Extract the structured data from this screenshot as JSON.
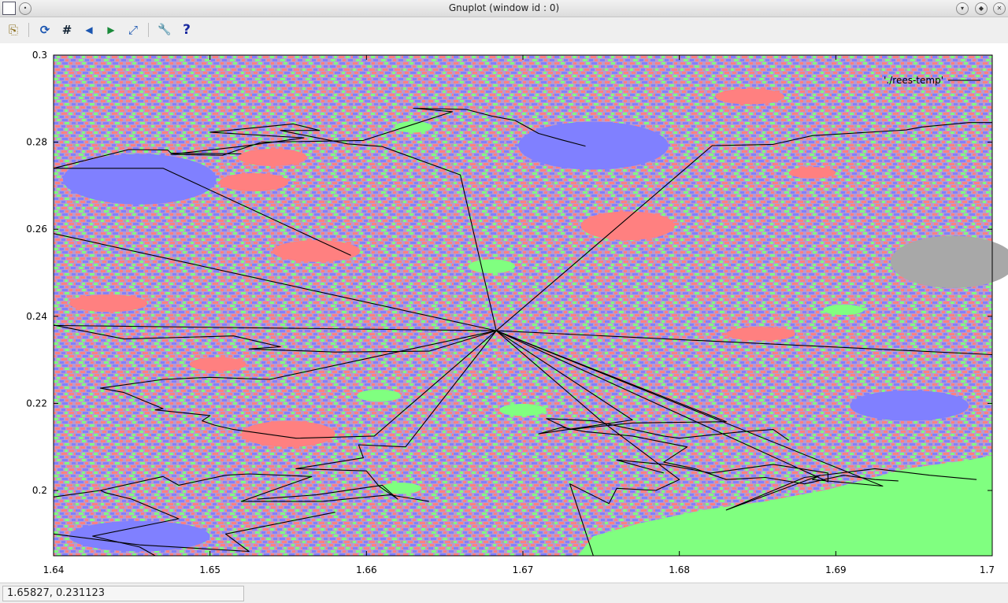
{
  "window": {
    "title": "Gnuplot (window id : 0)"
  },
  "toolbar": {
    "items": [
      {
        "name": "copy-to-clipboard",
        "glyph": "⎘"
      },
      {
        "name": "replot",
        "glyph": "⟳"
      },
      {
        "name": "grid",
        "glyph": "#"
      },
      {
        "name": "previous-zoom",
        "glyph": "◀"
      },
      {
        "name": "next-zoom",
        "glyph": "▶"
      },
      {
        "name": "autoscale",
        "glyph": "⤢"
      },
      {
        "name": "settings",
        "glyph": "🔧"
      },
      {
        "name": "help",
        "glyph": "?"
      }
    ]
  },
  "status": {
    "coords": "1.65827,  0.231123"
  },
  "chart_data": {
    "type": "line",
    "title": "",
    "xlabel": "",
    "ylabel": "",
    "xlim": [
      1.64,
      1.7
    ],
    "ylim": [
      0.185,
      0.3
    ],
    "xticks": [
      "1.64",
      "1.65",
      "1.66",
      "1.67",
      "1.68",
      "1.69",
      "1.7"
    ],
    "yticks": [
      "0.3",
      "0.28",
      "0.26",
      "0.24",
      "0.22",
      "0.2"
    ],
    "legend": {
      "label": "'./rees-temp'",
      "position": "top-right"
    },
    "background": "color-noise field (pink, blue, green, grey)",
    "colors": {
      "pink": "#ff8080",
      "blue": "#8080ff",
      "green": "#80ff80",
      "grey": "#a8a8a8",
      "line": "#000000"
    },
    "blobs": [
      {
        "color": "blue",
        "x": 1.6455,
        "y": 0.2715,
        "rx": 0.0049,
        "ry": 0.0058
      },
      {
        "color": "blue",
        "x": 1.6745,
        "y": 0.2792,
        "rx": 0.0048,
        "ry": 0.0055
      },
      {
        "color": "blue",
        "x": 1.6947,
        "y": 0.2195,
        "rx": 0.0038,
        "ry": 0.0035
      },
      {
        "color": "blue",
        "x": 1.6455,
        "y": 0.1895,
        "rx": 0.0045,
        "ry": 0.0035
      },
      {
        "color": "pink",
        "x": 1.6528,
        "y": 0.2708,
        "rx": 0.0022,
        "ry": 0.0021
      },
      {
        "color": "pink",
        "x": 1.6568,
        "y": 0.255,
        "rx": 0.0028,
        "ry": 0.0025
      },
      {
        "color": "pink",
        "x": 1.6767,
        "y": 0.2608,
        "rx": 0.003,
        "ry": 0.0033
      },
      {
        "color": "pink",
        "x": 1.655,
        "y": 0.213,
        "rx": 0.003,
        "ry": 0.003
      },
      {
        "color": "pink",
        "x": 1.654,
        "y": 0.2765,
        "rx": 0.0022,
        "ry": 0.002
      },
      {
        "color": "pink",
        "x": 1.6435,
        "y": 0.243,
        "rx": 0.0025,
        "ry": 0.002
      },
      {
        "color": "pink",
        "x": 1.6845,
        "y": 0.2905,
        "rx": 0.0022,
        "ry": 0.0018
      },
      {
        "color": "pink",
        "x": 1.6852,
        "y": 0.236,
        "rx": 0.0022,
        "ry": 0.0016
      },
      {
        "color": "pink",
        "x": 1.6505,
        "y": 0.229,
        "rx": 0.0018,
        "ry": 0.0016
      },
      {
        "color": "pink",
        "x": 1.6885,
        "y": 0.273,
        "rx": 0.0015,
        "ry": 0.0013
      },
      {
        "color": "grey",
        "x": 1.6975,
        "y": 0.2525,
        "rx": 0.004,
        "ry": 0.006
      },
      {
        "color": "green",
        "x": 1.668,
        "y": 0.2515,
        "rx": 0.0015,
        "ry": 0.0016
      },
      {
        "color": "green",
        "x": 1.67,
        "y": 0.2185,
        "rx": 0.0015,
        "ry": 0.0014
      },
      {
        "color": "green",
        "x": 1.6608,
        "y": 0.2218,
        "rx": 0.0014,
        "ry": 0.0014
      },
      {
        "color": "green",
        "x": 1.663,
        "y": 0.2835,
        "rx": 0.0012,
        "ry": 0.0013
      },
      {
        "color": "green",
        "x": 1.6905,
        "y": 0.2415,
        "rx": 0.0013,
        "ry": 0.0012
      },
      {
        "color": "green",
        "x": 1.6622,
        "y": 0.2005,
        "rx": 0.0013,
        "ry": 0.0013
      }
    ],
    "green_region": [
      [
        1.6735,
        0.185
      ],
      [
        1.6745,
        0.1895
      ],
      [
        1.6775,
        0.1925
      ],
      [
        1.6815,
        0.1955
      ],
      [
        1.6855,
        0.1975
      ],
      [
        1.6895,
        0.2002
      ],
      [
        1.6945,
        0.205
      ],
      [
        1.6985,
        0.207
      ],
      [
        1.7,
        0.208
      ],
      [
        1.7,
        0.185
      ]
    ],
    "series": [
      {
        "points": [
          [
            1.64,
            0.274
          ],
          [
            1.647,
            0.274
          ],
          [
            1.659,
            0.254
          ]
        ]
      },
      {
        "points": [
          [
            1.64,
            0.259
          ],
          [
            1.6683,
            0.2367
          ]
        ]
      },
      {
        "points": [
          [
            1.64,
            0.2379
          ],
          [
            1.6683,
            0.2367
          ],
          [
            1.7,
            0.2312
          ]
        ]
      },
      {
        "points": [
          [
            1.6683,
            0.2367
          ],
          [
            1.6821,
            0.2792
          ],
          [
            1.686,
            0.2795
          ],
          [
            1.6885,
            0.2815
          ],
          [
            1.6945,
            0.2828
          ],
          [
            1.6955,
            0.2835
          ],
          [
            1.6985,
            0.2845
          ],
          [
            1.7,
            0.2845
          ]
        ]
      },
      {
        "points": [
          [
            1.6683,
            0.2367
          ],
          [
            1.666,
            0.2725
          ],
          [
            1.661,
            0.279
          ],
          [
            1.6588,
            0.2796
          ],
          [
            1.6545,
            0.2827
          ],
          [
            1.657,
            0.2827
          ],
          [
            1.6553,
            0.2842
          ],
          [
            1.65,
            0.2823
          ],
          [
            1.656,
            0.281
          ],
          [
            1.652,
            0.279
          ],
          [
            1.6475,
            0.2772
          ],
          [
            1.6508,
            0.277
          ],
          [
            1.6533,
            0.28
          ],
          [
            1.6598,
            0.2804
          ],
          [
            1.6655,
            0.287
          ],
          [
            1.663,
            0.2878
          ],
          [
            1.6664,
            0.2875
          ],
          [
            1.668,
            0.286
          ],
          [
            1.6695,
            0.285
          ],
          [
            1.671,
            0.282
          ],
          [
            1.6725,
            0.2805
          ],
          [
            1.674,
            0.2791
          ]
        ]
      },
      {
        "points": [
          [
            1.64,
            0.274
          ],
          [
            1.6448,
            0.2783
          ],
          [
            1.6473,
            0.2782
          ],
          [
            1.6475,
            0.2775
          ],
          [
            1.652,
            0.2773
          ]
        ]
      },
      {
        "points": [
          [
            1.64,
            0.238
          ],
          [
            1.6445,
            0.2348
          ],
          [
            1.6515,
            0.2355
          ],
          [
            1.6545,
            0.233
          ],
          [
            1.6525,
            0.2325
          ],
          [
            1.658,
            0.2318
          ],
          [
            1.664,
            0.232
          ],
          [
            1.6683,
            0.2367
          ]
        ]
      },
      {
        "points": [
          [
            1.6683,
            0.2367
          ],
          [
            1.6538,
            0.2255
          ],
          [
            1.65,
            0.226
          ],
          [
            1.647,
            0.2255
          ],
          [
            1.643,
            0.2235
          ],
          [
            1.6445,
            0.2225
          ],
          [
            1.6455,
            0.221
          ],
          [
            1.647,
            0.2188
          ],
          [
            1.6465,
            0.2185
          ],
          [
            1.65,
            0.2172
          ],
          [
            1.6495,
            0.216
          ],
          [
            1.6503,
            0.215
          ],
          [
            1.6515,
            0.214
          ],
          [
            1.6555,
            0.212
          ],
          [
            1.6605,
            0.2125
          ],
          [
            1.6683,
            0.2367
          ]
        ]
      },
      {
        "points": [
          [
            1.6683,
            0.2367
          ],
          [
            1.6625,
            0.21
          ],
          [
            1.6595,
            0.2105
          ],
          [
            1.6598,
            0.2075
          ],
          [
            1.6555,
            0.205
          ],
          [
            1.66,
            0.2045
          ],
          [
            1.6608,
            0.201
          ],
          [
            1.662,
            0.198
          ],
          [
            1.661,
            0.2012
          ],
          [
            1.6568,
            0.199
          ],
          [
            1.653,
            0.198
          ]
        ]
      },
      {
        "points": [
          [
            1.6683,
            0.2367
          ],
          [
            1.677,
            0.2162
          ],
          [
            1.671,
            0.213
          ],
          [
            1.6725,
            0.2145
          ],
          [
            1.674,
            0.2135
          ],
          [
            1.677,
            0.2125
          ],
          [
            1.6805,
            0.21
          ],
          [
            1.679,
            0.2065
          ],
          [
            1.681,
            0.205
          ],
          [
            1.683,
            0.2025
          ],
          [
            1.6855,
            0.203
          ],
          [
            1.688,
            0.2015
          ],
          [
            1.6905,
            0.2035
          ],
          [
            1.6925,
            0.2025
          ],
          [
            1.694,
            0.2022
          ]
        ]
      },
      {
        "points": [
          [
            1.6683,
            0.2367
          ],
          [
            1.683,
            0.2158
          ],
          [
            1.677,
            0.2155
          ],
          [
            1.673,
            0.214
          ],
          [
            1.6715,
            0.2165
          ],
          [
            1.6745,
            0.216
          ],
          [
            1.679,
            0.2125
          ],
          [
            1.68,
            0.212
          ],
          [
            1.684,
            0.2135
          ],
          [
            1.686,
            0.214
          ],
          [
            1.687,
            0.2115
          ]
        ]
      },
      {
        "points": [
          [
            1.6683,
            0.2367
          ],
          [
            1.6895,
            0.202
          ],
          [
            1.6895,
            0.204
          ],
          [
            1.686,
            0.206
          ],
          [
            1.682,
            0.204
          ],
          [
            1.679,
            0.206
          ],
          [
            1.676,
            0.207
          ],
          [
            1.6775,
            0.2055
          ],
          [
            1.679,
            0.204
          ]
        ]
      },
      {
        "points": [
          [
            1.6683,
            0.2367
          ],
          [
            1.675,
            0.216
          ],
          [
            1.68,
            0.2025
          ],
          [
            1.6785,
            0.2
          ],
          [
            1.676,
            0.2005
          ],
          [
            1.6755,
            0.197
          ],
          [
            1.673,
            0.2015
          ],
          [
            1.6745,
            0.185
          ]
        ]
      },
      {
        "points": [
          [
            1.6683,
            0.2367
          ],
          [
            1.693,
            0.201
          ],
          [
            1.6885,
            0.2025
          ],
          [
            1.689,
            0.2035
          ],
          [
            1.683,
            0.1955
          ],
          [
            1.688,
            0.203
          ],
          [
            1.6925,
            0.205
          ],
          [
            1.696,
            0.2035
          ],
          [
            1.699,
            0.2025
          ]
        ]
      },
      {
        "points": [
          [
            1.64,
            0.19
          ],
          [
            1.6455,
            0.1875
          ],
          [
            1.6525,
            0.186
          ],
          [
            1.651,
            0.19
          ],
          [
            1.658,
            0.195
          ]
        ]
      },
      {
        "points": [
          [
            1.64,
            0.1985
          ],
          [
            1.643,
            0.2
          ],
          [
            1.6433,
            0.1995
          ],
          [
            1.645,
            0.198
          ],
          [
            1.648,
            0.1935
          ],
          [
            1.6425,
            0.1895
          ],
          [
            1.6455,
            0.187
          ],
          [
            1.6465,
            0.185
          ]
        ]
      },
      {
        "points": [
          [
            1.643,
            0.2
          ],
          [
            1.647,
            0.2032
          ],
          [
            1.648,
            0.2012
          ],
          [
            1.651,
            0.2035
          ],
          [
            1.6525,
            0.2038
          ],
          [
            1.6565,
            0.2032
          ],
          [
            1.652,
            0.1975
          ],
          [
            1.6572,
            0.1975
          ],
          [
            1.6615,
            0.199
          ],
          [
            1.664,
            0.1975
          ]
        ]
      }
    ]
  }
}
